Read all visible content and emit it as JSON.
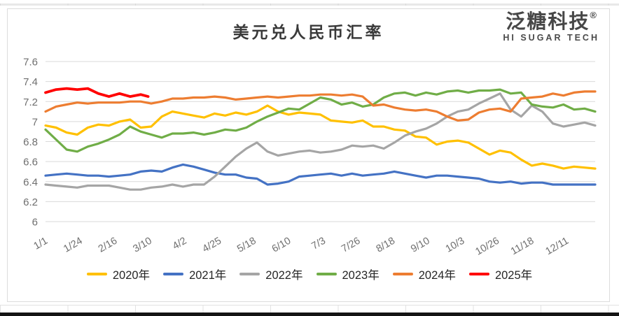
{
  "brand": {
    "name": "泛糖科技",
    "registered_mark": "®",
    "subtitle": "HI SUGAR TECH"
  },
  "chart_data": {
    "type": "line",
    "title": "美元兑人民币汇率",
    "xlabel": "",
    "ylabel": "",
    "ylim": [
      6,
      7.6
    ],
    "y_ticks": [
      "7.6",
      "7.4",
      "7.2",
      "7",
      "6.8",
      "6.6",
      "6.4",
      "6.2",
      "6"
    ],
    "x_ticks": [
      "1/1",
      "1/24",
      "2/16",
      "3/10",
      "4/2",
      "4/25",
      "5/18",
      "6/10",
      "7/3",
      "7/26",
      "8/18",
      "9/10",
      "10/3",
      "10/26",
      "11/18",
      "12/11"
    ],
    "x_tick_interval_days": 23,
    "x_unit": "day of year; series points are weekly samples starting Jan 1",
    "grid": "horizontal",
    "legend_position": "bottom",
    "series": [
      {
        "name": "2020年",
        "color": "#FFC000",
        "values": [
          6.96,
          6.94,
          6.89,
          6.87,
          6.94,
          6.97,
          6.96,
          7.0,
          7.02,
          6.94,
          6.95,
          7.05,
          7.1,
          7.08,
          7.06,
          7.04,
          7.08,
          7.06,
          7.09,
          7.07,
          7.1,
          7.16,
          7.1,
          7.07,
          7.09,
          7.08,
          7.07,
          7.01,
          7.0,
          6.99,
          7.01,
          6.95,
          6.95,
          6.92,
          6.91,
          6.85,
          6.84,
          6.77,
          6.8,
          6.81,
          6.79,
          6.73,
          6.67,
          6.71,
          6.69,
          6.62,
          6.56,
          6.58,
          6.56,
          6.53,
          6.55,
          6.54,
          6.53
        ]
      },
      {
        "name": "2021年",
        "color": "#4472C4",
        "values": [
          6.46,
          6.47,
          6.48,
          6.47,
          6.46,
          6.46,
          6.45,
          6.46,
          6.47,
          6.5,
          6.51,
          6.5,
          6.54,
          6.57,
          6.55,
          6.52,
          6.49,
          6.47,
          6.47,
          6.44,
          6.43,
          6.37,
          6.38,
          6.4,
          6.45,
          6.46,
          6.47,
          6.48,
          6.46,
          6.48,
          6.46,
          6.47,
          6.48,
          6.5,
          6.48,
          6.46,
          6.44,
          6.46,
          6.46,
          6.45,
          6.44,
          6.43,
          6.4,
          6.39,
          6.4,
          6.38,
          6.39,
          6.39,
          6.37,
          6.37,
          6.37,
          6.37,
          6.37
        ]
      },
      {
        "name": "2022年",
        "color": "#A5A5A5",
        "values": [
          6.37,
          6.36,
          6.35,
          6.34,
          6.36,
          6.36,
          6.36,
          6.34,
          6.32,
          6.32,
          6.34,
          6.35,
          6.37,
          6.35,
          6.37,
          6.37,
          6.45,
          6.55,
          6.65,
          6.73,
          6.79,
          6.7,
          6.66,
          6.68,
          6.7,
          6.71,
          6.69,
          6.7,
          6.72,
          6.76,
          6.75,
          6.76,
          6.73,
          6.79,
          6.86,
          6.9,
          6.93,
          6.98,
          7.05,
          7.1,
          7.12,
          7.18,
          7.23,
          7.28,
          7.12,
          7.05,
          7.16,
          7.1,
          6.98,
          6.95,
          6.97,
          6.99,
          6.96
        ]
      },
      {
        "name": "2023年",
        "color": "#70AD47",
        "values": [
          6.92,
          6.82,
          6.72,
          6.7,
          6.75,
          6.78,
          6.82,
          6.87,
          6.95,
          6.9,
          6.87,
          6.84,
          6.88,
          6.88,
          6.89,
          6.87,
          6.89,
          6.92,
          6.91,
          6.94,
          7.0,
          7.05,
          7.09,
          7.13,
          7.12,
          7.18,
          7.24,
          7.22,
          7.17,
          7.19,
          7.15,
          7.17,
          7.24,
          7.28,
          7.29,
          7.26,
          7.29,
          7.27,
          7.3,
          7.31,
          7.29,
          7.31,
          7.31,
          7.32,
          7.28,
          7.29,
          7.17,
          7.15,
          7.14,
          7.17,
          7.12,
          7.13,
          7.1
        ]
      },
      {
        "name": "2024年",
        "color": "#ED7D31",
        "values": [
          7.1,
          7.15,
          7.17,
          7.19,
          7.18,
          7.19,
          7.19,
          7.19,
          7.2,
          7.2,
          7.18,
          7.2,
          7.23,
          7.23,
          7.24,
          7.24,
          7.25,
          7.24,
          7.22,
          7.23,
          7.24,
          7.25,
          7.24,
          7.25,
          7.26,
          7.26,
          7.27,
          7.27,
          7.26,
          7.27,
          7.25,
          7.16,
          7.17,
          7.14,
          7.12,
          7.11,
          7.12,
          7.1,
          7.05,
          7.01,
          7.02,
          7.09,
          7.12,
          7.13,
          7.1,
          7.23,
          7.24,
          7.25,
          7.28,
          7.26,
          7.29,
          7.3,
          7.3
        ]
      },
      {
        "name": "2025年",
        "color": "#FF0000",
        "partial": true,
        "days": [
          1,
          8,
          15,
          22,
          29,
          36,
          43,
          50,
          57,
          64,
          69
        ],
        "values": [
          7.29,
          7.32,
          7.33,
          7.32,
          7.33,
          7.28,
          7.25,
          7.28,
          7.25,
          7.27,
          7.25
        ]
      }
    ]
  }
}
